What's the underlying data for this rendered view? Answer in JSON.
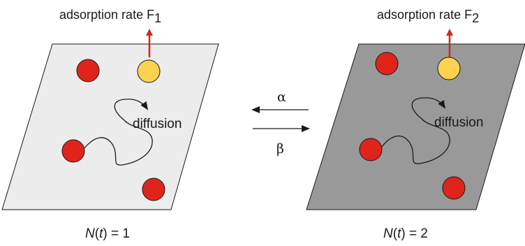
{
  "left_panel": {
    "rate_label": "adsorption rate F",
    "rate_subscript": "1",
    "diffusion_label": "diffusion",
    "state_label_var": "N",
    "state_label_arg": "t",
    "state_label_value": "= 1",
    "fill_color": "#ececec"
  },
  "right_panel": {
    "rate_label": "adsorption rate F",
    "rate_subscript": "2",
    "diffusion_label": "diffusion",
    "state_label_var": "N",
    "state_label_arg": "t",
    "state_label_value": "= 2",
    "fill_color": "#999999"
  },
  "transitions": {
    "forward_symbol": "α",
    "backward_symbol": "β"
  },
  "colors": {
    "particle_red": "#e0241c",
    "particle_yellow": "#fdd250",
    "arrow_red": "#d8261c",
    "outline": "#1a1a1a"
  }
}
